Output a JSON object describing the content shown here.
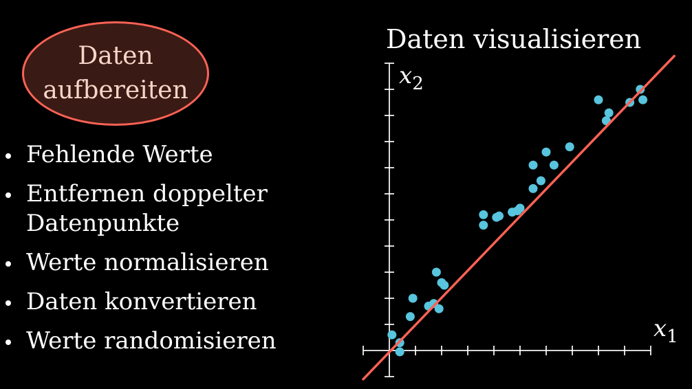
{
  "badge": {
    "text": "Daten\naufbereiten"
  },
  "bullets": [
    "Fehlende Werte",
    "Entfernen doppelter\nDatenpunkte",
    "Werte normalisieren",
    "Daten konvertieren",
    "Werte randomisieren"
  ],
  "colors": {
    "background": "#000000",
    "badge_border": "#fc6255",
    "badge_fill": "#3a1a14",
    "points": "#58c4dd",
    "fit_line": "#fc6255",
    "axes": "#ffffff"
  },
  "chart_data": {
    "type": "scatter",
    "title": "Daten visualisieren",
    "xlabel": "x1",
    "ylabel": "x2",
    "xlim": [
      -1,
      10
    ],
    "ylim": [
      -1,
      11
    ],
    "grid": false,
    "tick_labels": false,
    "series": [
      {
        "points": [
          [
            0.1,
            0.6
          ],
          [
            0.4,
            0.3
          ],
          [
            0.4,
            -0.05
          ],
          [
            0.8,
            1.3
          ],
          [
            0.9,
            2.0
          ],
          [
            1.5,
            1.7
          ],
          [
            1.7,
            1.8
          ],
          [
            1.8,
            3.0
          ],
          [
            1.9,
            1.6
          ],
          [
            2.0,
            2.6
          ],
          [
            2.1,
            2.5
          ],
          [
            3.6,
            4.8
          ],
          [
            3.6,
            5.2
          ],
          [
            4.1,
            5.1
          ],
          [
            4.2,
            5.15
          ],
          [
            4.7,
            5.3
          ],
          [
            4.9,
            5.35
          ],
          [
            5.0,
            5.45
          ],
          [
            5.5,
            6.2
          ],
          [
            5.5,
            7.1
          ],
          [
            5.8,
            6.5
          ],
          [
            6.0,
            7.6
          ],
          [
            6.3,
            7.1
          ],
          [
            6.9,
            7.8
          ],
          [
            8.0,
            9.6
          ],
          [
            8.3,
            8.8
          ],
          [
            8.4,
            9.1
          ],
          [
            9.2,
            9.5
          ],
          [
            9.6,
            10.0
          ],
          [
            9.7,
            9.6
          ]
        ]
      }
    ],
    "fit_line": {
      "slope": 1.04,
      "intercept": -0.06
    }
  }
}
